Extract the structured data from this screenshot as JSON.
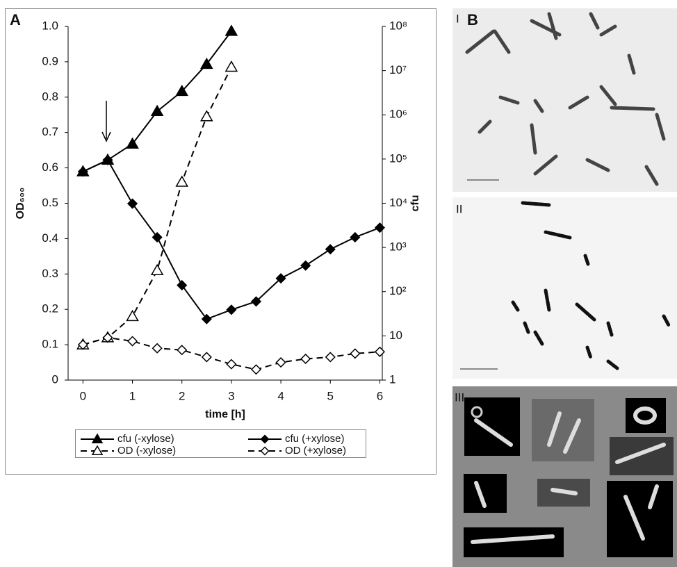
{
  "panel_labels": [
    "A",
    "B",
    "I",
    "II",
    "III"
  ],
  "chart_data": {
    "type": "line",
    "x_label": "time [h]",
    "y_label": "OD₆₀₀",
    "y2_label": "cfu",
    "x": [
      0,
      0.5,
      1,
      1.5,
      2,
      2.5,
      3,
      3.5,
      4,
      4.5,
      5,
      5.5,
      6
    ],
    "xlim": [
      -0.3,
      6.05
    ],
    "xticks": [
      0,
      1,
      2,
      3,
      4,
      5,
      6
    ],
    "ylim": [
      0,
      1
    ],
    "yticks": [
      0,
      0.1,
      0.2,
      0.3,
      0.4,
      0.5,
      0.6,
      0.7,
      0.8,
      0.9,
      {
        "value": 1,
        "label": "1.0"
      }
    ],
    "y2lim": [
      1,
      100000000
    ],
    "y2log": true,
    "y2ticks": [
      1,
      10,
      {
        "value": 100,
        "label": "10²"
      },
      {
        "value": 1000,
        "label": "10³"
      },
      {
        "value": 10000,
        "label": "10⁴"
      },
      {
        "value": 100000,
        "label": "10⁵"
      },
      {
        "value": 1000000,
        "label": "10⁶"
      },
      {
        "value": 10000000,
        "label": "10⁷"
      },
      {
        "value": 100000000,
        "label": "10⁸"
      }
    ],
    "series": [
      {
        "name": "cfu (-xylose)",
        "color": "#000000",
        "axis": "y2",
        "marker": "triangle",
        "filled": true,
        "dashed": false,
        "values": [
          52000,
          95000,
          220000,
          1200000,
          3400000,
          14000000,
          78000000,
          null,
          null,
          null,
          null,
          null,
          null
        ]
      },
      {
        "name": "cfu (+xylose)",
        "color": "#000000",
        "axis": "y2",
        "marker": "diamond",
        "filled": true,
        "dashed": false,
        "values": [
          52000,
          95000,
          9800,
          1700,
          140,
          24,
          39,
          60,
          200,
          390,
          910,
          1700,
          2800
        ]
      },
      {
        "name": "OD (-xylose)",
        "color": "#000000",
        "marker": "triangle",
        "filled": false,
        "dashed": true,
        "values": [
          0.1,
          0.12,
          0.18,
          0.31,
          0.56,
          0.745,
          0.885,
          null,
          null,
          null,
          null,
          null,
          null
        ]
      },
      {
        "name": "OD (+xylose)",
        "color": "#000000",
        "marker": "diamond",
        "filled": false,
        "dashed": true,
        "values": [
          0.1,
          0.12,
          0.11,
          0.09,
          0.085,
          0.065,
          0.045,
          0.03,
          0.05,
          0.06,
          0.065,
          0.075,
          0.08
        ]
      }
    ]
  }
}
